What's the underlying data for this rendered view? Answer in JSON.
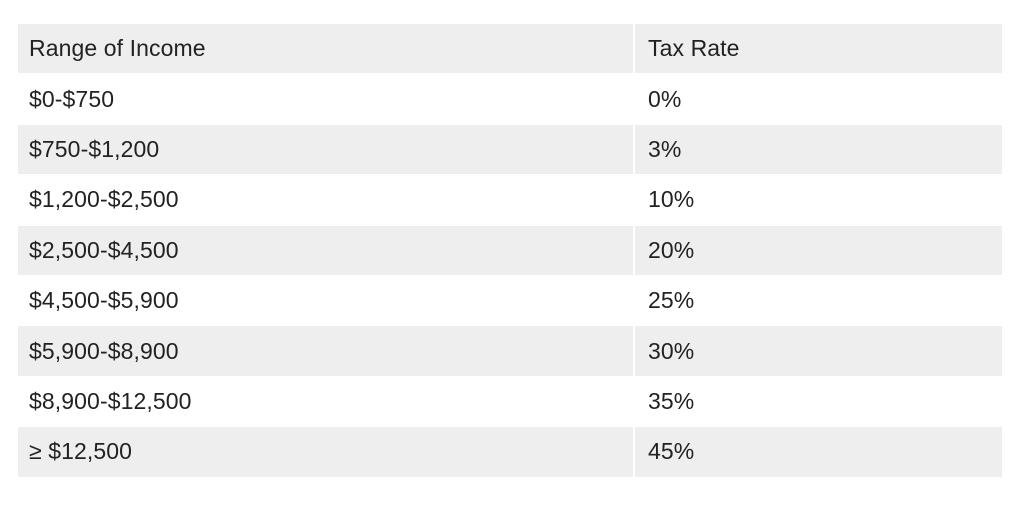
{
  "table": {
    "headers": {
      "range": "Range of Income",
      "rate": "Tax Rate"
    },
    "rows": [
      {
        "range": "$0-$750",
        "rate": "0%"
      },
      {
        "range": "$750-$1,200",
        "rate": "3%"
      },
      {
        "range": "$1,200-$2,500",
        "rate": "10%"
      },
      {
        "range": "$2,500-$4,500",
        "rate": "20%"
      },
      {
        "range": "$4,500-$5,900",
        "rate": "25%"
      },
      {
        "range": "$5,900-$8,900",
        "rate": "30%"
      },
      {
        "range": "$8,900-$12,500",
        "rate": "35%"
      },
      {
        "range": "≥ $12,500",
        "rate": "45%"
      }
    ]
  },
  "colors": {
    "shaded_row": "#eeeeee",
    "plain_row": "#ffffff",
    "text": "#222222"
  }
}
